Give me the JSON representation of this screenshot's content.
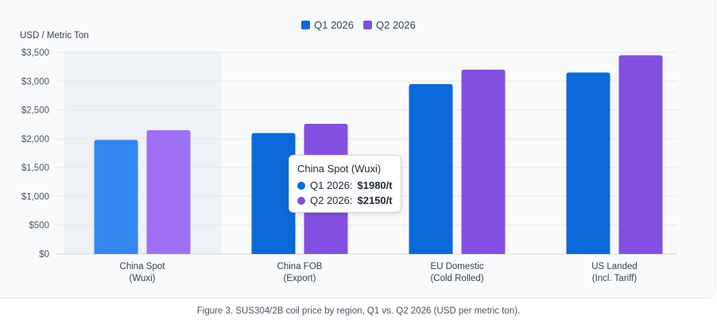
{
  "chart_data": {
    "type": "bar",
    "ylabel": "USD / Metric Ton",
    "ylim": [
      0,
      3500
    ],
    "yticks": [
      0,
      500,
      1000,
      1500,
      2000,
      2500,
      3000,
      3500
    ],
    "ytick_labels": [
      "$0",
      "$500",
      "$1,000",
      "$1,500",
      "$2,000",
      "$2,500",
      "$3,000",
      "$3,500"
    ],
    "categories": [
      [
        "China Spot",
        "(Wuxi)"
      ],
      [
        "China FOB",
        "(Export)"
      ],
      [
        "EU Domestic",
        "(Cold Rolled)"
      ],
      [
        "US Landed",
        "(Incl. Tariff)"
      ]
    ],
    "series": [
      {
        "name": "Q1 2026",
        "color": "#0b69d9",
        "highlight_color": "#3487ee",
        "values": [
          1980,
          2100,
          2950,
          3150
        ]
      },
      {
        "name": "Q2 2026",
        "color": "#834fe0",
        "highlight_color": "#9e70f5",
        "values": [
          2150,
          2260,
          3200,
          3450
        ]
      }
    ],
    "grid": true,
    "legend_position": "top-center",
    "highlighted_category_index": 0
  },
  "tooltip": {
    "title": "China Spot (Wuxi)",
    "rows": [
      {
        "label": "Q1 2026:",
        "value": "$1980/t",
        "color": "#0b69d9"
      },
      {
        "label": "Q2 2026:",
        "value": "$2150/t",
        "color": "#834fe0"
      }
    ]
  },
  "caption": "Figure 3. SUS304/2B coil price by region, Q1 vs. Q2 2026 (USD per metric ton)."
}
